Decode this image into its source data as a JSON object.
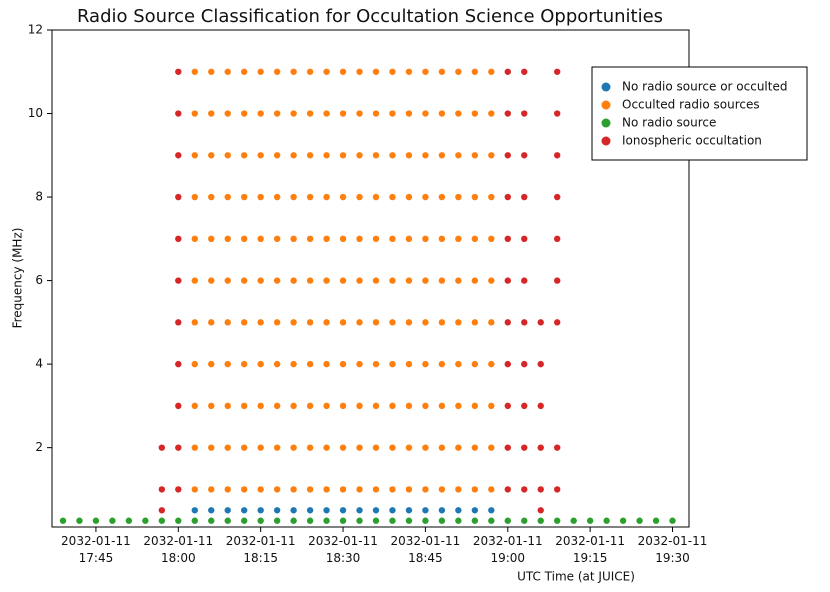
{
  "chart_data": {
    "type": "scatter",
    "title": "Radio Source Classification for Occultation Science Opportunities",
    "x_label": "UTC Time (at JUICE)",
    "y_label": "Frequency (MHz)",
    "xlim": [
      "2032-01-11 17:37",
      "2032-01-11 19:33"
    ],
    "xticks": [
      "2032-01-11 17:45",
      "2032-01-11 18:00",
      "2032-01-11 18:15",
      "2032-01-11 18:30",
      "2032-01-11 18:45",
      "2032-01-11 19:00",
      "2032-01-11 19:15",
      "2032-01-11 19:30"
    ],
    "ylim": [
      0.1,
      12
    ],
    "yticks": [
      2,
      4,
      6,
      8,
      10,
      12
    ],
    "legend": "upper right",
    "series": [
      {
        "name": "No radio source or occulted",
        "color": "#1f77b4",
        "x": [
          "2032-01-11 18:03",
          "2032-01-11 18:06",
          "2032-01-11 18:09",
          "2032-01-11 18:12",
          "2032-01-11 18:15",
          "2032-01-11 18:18",
          "2032-01-11 18:21",
          "2032-01-11 18:24",
          "2032-01-11 18:27",
          "2032-01-11 18:30",
          "2032-01-11 18:33",
          "2032-01-11 18:36",
          "2032-01-11 18:39",
          "2032-01-11 18:42",
          "2032-01-11 18:45",
          "2032-01-11 18:48",
          "2032-01-11 18:51",
          "2032-01-11 18:54",
          "2032-01-11 18:57"
        ],
        "values": [
          0.5,
          0.5,
          0.5,
          0.5,
          0.5,
          0.5,
          0.5,
          0.5,
          0.5,
          0.5,
          0.5,
          0.5,
          0.5,
          0.5,
          0.5,
          0.5,
          0.5,
          0.5,
          0.5
        ]
      },
      {
        "name": "Occulted radio sources",
        "color": "#ff7f0e",
        "x": [
          "2032-01-11 18:03",
          "2032-01-11 18:06",
          "2032-01-11 18:09",
          "2032-01-11 18:12",
          "2032-01-11 18:15",
          "2032-01-11 18:18",
          "2032-01-11 18:21",
          "2032-01-11 18:24",
          "2032-01-11 18:27",
          "2032-01-11 18:30",
          "2032-01-11 18:33",
          "2032-01-11 18:36",
          "2032-01-11 18:39",
          "2032-01-11 18:42",
          "2032-01-11 18:45",
          "2032-01-11 18:48",
          "2032-01-11 18:51",
          "2032-01-11 18:54",
          "2032-01-11 18:57",
          "2032-01-11 18:03",
          "2032-01-11 18:06",
          "2032-01-11 18:09",
          "2032-01-11 18:12",
          "2032-01-11 18:15",
          "2032-01-11 18:18",
          "2032-01-11 18:21",
          "2032-01-11 18:24",
          "2032-01-11 18:27",
          "2032-01-11 18:30",
          "2032-01-11 18:33",
          "2032-01-11 18:36",
          "2032-01-11 18:39",
          "2032-01-11 18:42",
          "2032-01-11 18:45",
          "2032-01-11 18:48",
          "2032-01-11 18:51",
          "2032-01-11 18:54",
          "2032-01-11 18:57",
          "2032-01-11 18:03",
          "2032-01-11 18:06",
          "2032-01-11 18:09",
          "2032-01-11 18:12",
          "2032-01-11 18:15",
          "2032-01-11 18:18",
          "2032-01-11 18:21",
          "2032-01-11 18:24",
          "2032-01-11 18:27",
          "2032-01-11 18:30",
          "2032-01-11 18:33",
          "2032-01-11 18:36",
          "2032-01-11 18:39",
          "2032-01-11 18:42",
          "2032-01-11 18:45",
          "2032-01-11 18:48",
          "2032-01-11 18:51",
          "2032-01-11 18:54",
          "2032-01-11 18:57",
          "2032-01-11 18:03",
          "2032-01-11 18:06",
          "2032-01-11 18:09",
          "2032-01-11 18:12",
          "2032-01-11 18:15",
          "2032-01-11 18:18",
          "2032-01-11 18:21",
          "2032-01-11 18:24",
          "2032-01-11 18:27",
          "2032-01-11 18:30",
          "2032-01-11 18:33",
          "2032-01-11 18:36",
          "2032-01-11 18:39",
          "2032-01-11 18:42",
          "2032-01-11 18:45",
          "2032-01-11 18:48",
          "2032-01-11 18:51",
          "2032-01-11 18:54",
          "2032-01-11 18:57",
          "2032-01-11 18:03",
          "2032-01-11 18:06",
          "2032-01-11 18:09",
          "2032-01-11 18:12",
          "2032-01-11 18:15",
          "2032-01-11 18:18",
          "2032-01-11 18:21",
          "2032-01-11 18:24",
          "2032-01-11 18:27",
          "2032-01-11 18:30",
          "2032-01-11 18:33",
          "2032-01-11 18:36",
          "2032-01-11 18:39",
          "2032-01-11 18:42",
          "2032-01-11 18:45",
          "2032-01-11 18:48",
          "2032-01-11 18:51",
          "2032-01-11 18:54",
          "2032-01-11 18:57",
          "2032-01-11 18:03",
          "2032-01-11 18:06",
          "2032-01-11 18:09",
          "2032-01-11 18:12",
          "2032-01-11 18:15",
          "2032-01-11 18:18",
          "2032-01-11 18:21",
          "2032-01-11 18:24",
          "2032-01-11 18:27",
          "2032-01-11 18:30",
          "2032-01-11 18:33",
          "2032-01-11 18:36",
          "2032-01-11 18:39",
          "2032-01-11 18:42",
          "2032-01-11 18:45",
          "2032-01-11 18:48",
          "2032-01-11 18:51",
          "2032-01-11 18:54",
          "2032-01-11 18:57",
          "2032-01-11 18:03",
          "2032-01-11 18:06",
          "2032-01-11 18:09",
          "2032-01-11 18:12",
          "2032-01-11 18:15",
          "2032-01-11 18:18",
          "2032-01-11 18:21",
          "2032-01-11 18:24",
          "2032-01-11 18:27",
          "2032-01-11 18:30",
          "2032-01-11 18:33",
          "2032-01-11 18:36",
          "2032-01-11 18:39",
          "2032-01-11 18:42",
          "2032-01-11 18:45",
          "2032-01-11 18:48",
          "2032-01-11 18:51",
          "2032-01-11 18:54",
          "2032-01-11 18:57",
          "2032-01-11 18:03",
          "2032-01-11 18:06",
          "2032-01-11 18:09",
          "2032-01-11 18:12",
          "2032-01-11 18:15",
          "2032-01-11 18:18",
          "2032-01-11 18:21",
          "2032-01-11 18:24",
          "2032-01-11 18:27",
          "2032-01-11 18:30",
          "2032-01-11 18:33",
          "2032-01-11 18:36",
          "2032-01-11 18:39",
          "2032-01-11 18:42",
          "2032-01-11 18:45",
          "2032-01-11 18:48",
          "2032-01-11 18:51",
          "2032-01-11 18:54",
          "2032-01-11 18:57",
          "2032-01-11 18:03",
          "2032-01-11 18:06",
          "2032-01-11 18:09",
          "2032-01-11 18:12",
          "2032-01-11 18:15",
          "2032-01-11 18:18",
          "2032-01-11 18:21",
          "2032-01-11 18:24",
          "2032-01-11 18:27",
          "2032-01-11 18:30",
          "2032-01-11 18:33",
          "2032-01-11 18:36",
          "2032-01-11 18:39",
          "2032-01-11 18:42",
          "2032-01-11 18:45",
          "2032-01-11 18:48",
          "2032-01-11 18:51",
          "2032-01-11 18:54",
          "2032-01-11 18:57",
          "2032-01-11 18:03",
          "2032-01-11 18:06",
          "2032-01-11 18:09",
          "2032-01-11 18:12",
          "2032-01-11 18:15",
          "2032-01-11 18:18",
          "2032-01-11 18:21",
          "2032-01-11 18:24",
          "2032-01-11 18:27",
          "2032-01-11 18:30",
          "2032-01-11 18:33",
          "2032-01-11 18:36",
          "2032-01-11 18:39",
          "2032-01-11 18:42",
          "2032-01-11 18:45",
          "2032-01-11 18:48",
          "2032-01-11 18:51",
          "2032-01-11 18:54",
          "2032-01-11 18:57",
          "2032-01-11 18:03",
          "2032-01-11 18:06",
          "2032-01-11 18:09",
          "2032-01-11 18:12",
          "2032-01-11 18:15",
          "2032-01-11 18:18",
          "2032-01-11 18:21",
          "2032-01-11 18:24",
          "2032-01-11 18:27",
          "2032-01-11 18:30",
          "2032-01-11 18:33",
          "2032-01-11 18:36",
          "2032-01-11 18:39",
          "2032-01-11 18:42",
          "2032-01-11 18:45",
          "2032-01-11 18:48",
          "2032-01-11 18:51",
          "2032-01-11 18:54",
          "2032-01-11 18:57"
        ],
        "values": [
          1,
          1,
          1,
          1,
          1,
          1,
          1,
          1,
          1,
          1,
          1,
          1,
          1,
          1,
          1,
          1,
          1,
          1,
          1,
          2,
          2,
          2,
          2,
          2,
          2,
          2,
          2,
          2,
          2,
          2,
          2,
          2,
          2,
          2,
          2,
          2,
          2,
          2,
          3,
          3,
          3,
          3,
          3,
          3,
          3,
          3,
          3,
          3,
          3,
          3,
          3,
          3,
          3,
          3,
          3,
          3,
          3,
          4,
          4,
          4,
          4,
          4,
          4,
          4,
          4,
          4,
          4,
          4,
          4,
          4,
          4,
          4,
          4,
          4,
          4,
          4,
          5,
          5,
          5,
          5,
          5,
          5,
          5,
          5,
          5,
          5,
          5,
          5,
          5,
          5,
          5,
          5,
          5,
          5,
          5,
          6,
          6,
          6,
          6,
          6,
          6,
          6,
          6,
          6,
          6,
          6,
          6,
          6,
          6,
          6,
          6,
          6,
          6,
          6,
          7,
          7,
          7,
          7,
          7,
          7,
          7,
          7,
          7,
          7,
          7,
          7,
          7,
          7,
          7,
          7,
          7,
          7,
          7,
          8,
          8,
          8,
          8,
          8,
          8,
          8,
          8,
          8,
          8,
          8,
          8,
          8,
          8,
          8,
          8,
          8,
          8,
          8,
          9,
          9,
          9,
          9,
          9,
          9,
          9,
          9,
          9,
          9,
          9,
          9,
          9,
          9,
          9,
          9,
          9,
          9,
          9,
          10,
          10,
          10,
          10,
          10,
          10,
          10,
          10,
          10,
          10,
          10,
          10,
          10,
          10,
          10,
          10,
          10,
          10,
          10,
          11,
          11,
          11,
          11,
          11,
          11,
          11,
          11,
          11,
          11,
          11,
          11,
          11,
          11,
          11,
          11,
          11,
          11,
          11
        ]
      },
      {
        "name": "No radio source",
        "color": "#2ca02c",
        "x": [
          "2032-01-11 17:39",
          "2032-01-11 17:42",
          "2032-01-11 17:45",
          "2032-01-11 17:48",
          "2032-01-11 17:51",
          "2032-01-11 17:54",
          "2032-01-11 17:57",
          "2032-01-11 18:00",
          "2032-01-11 18:03",
          "2032-01-11 18:06",
          "2032-01-11 18:09",
          "2032-01-11 18:12",
          "2032-01-11 18:15",
          "2032-01-11 18:18",
          "2032-01-11 18:21",
          "2032-01-11 18:24",
          "2032-01-11 18:27",
          "2032-01-11 18:30",
          "2032-01-11 18:33",
          "2032-01-11 18:36",
          "2032-01-11 18:39",
          "2032-01-11 18:42",
          "2032-01-11 18:45",
          "2032-01-11 18:48",
          "2032-01-11 18:51",
          "2032-01-11 18:54",
          "2032-01-11 18:57",
          "2032-01-11 19:00",
          "2032-01-11 19:03",
          "2032-01-11 19:06",
          "2032-01-11 19:09",
          "2032-01-11 19:12",
          "2032-01-11 19:15",
          "2032-01-11 19:18",
          "2032-01-11 19:21",
          "2032-01-11 19:24",
          "2032-01-11 19:27",
          "2032-01-11 19:30"
        ],
        "values": [
          0.25,
          0.25,
          0.25,
          0.25,
          0.25,
          0.25,
          0.25,
          0.25,
          0.25,
          0.25,
          0.25,
          0.25,
          0.25,
          0.25,
          0.25,
          0.25,
          0.25,
          0.25,
          0.25,
          0.25,
          0.25,
          0.25,
          0.25,
          0.25,
          0.25,
          0.25,
          0.25,
          0.25,
          0.25,
          0.25,
          0.25,
          0.25,
          0.25,
          0.25,
          0.25,
          0.25,
          0.25,
          0.25
        ]
      },
      {
        "name": "Ionospheric occultation",
        "color": "#d62728",
        "x": [
          "2032-01-11 17:57",
          "2032-01-11 17:57",
          "2032-01-11 17:57",
          "2032-01-11 18:00",
          "2032-01-11 18:00",
          "2032-01-11 18:00",
          "2032-01-11 18:00",
          "2032-01-11 18:00",
          "2032-01-11 18:00",
          "2032-01-11 18:00",
          "2032-01-11 18:00",
          "2032-01-11 18:00",
          "2032-01-11 18:00",
          "2032-01-11 18:00",
          "2032-01-11 19:00",
          "2032-01-11 19:00",
          "2032-01-11 19:00",
          "2032-01-11 19:00",
          "2032-01-11 19:00",
          "2032-01-11 19:00",
          "2032-01-11 19:00",
          "2032-01-11 19:00",
          "2032-01-11 19:00",
          "2032-01-11 19:00",
          "2032-01-11 19:00",
          "2032-01-11 19:03",
          "2032-01-11 19:03",
          "2032-01-11 19:03",
          "2032-01-11 19:03",
          "2032-01-11 19:03",
          "2032-01-11 19:03",
          "2032-01-11 19:03",
          "2032-01-11 19:03",
          "2032-01-11 19:03",
          "2032-01-11 19:03",
          "2032-01-11 19:03",
          "2032-01-11 19:06",
          "2032-01-11 19:06",
          "2032-01-11 19:06",
          "2032-01-11 19:06",
          "2032-01-11 19:06",
          "2032-01-11 19:06",
          "2032-01-11 19:09",
          "2032-01-11 19:09",
          "2032-01-11 19:09",
          "2032-01-11 19:09",
          "2032-01-11 19:09",
          "2032-01-11 19:09",
          "2032-01-11 19:09",
          "2032-01-11 19:09",
          "2032-01-11 19:09"
        ],
        "values": [
          0.5,
          1,
          2,
          1,
          2,
          3,
          4,
          5,
          6,
          7,
          8,
          9,
          10,
          11,
          1,
          2,
          3,
          4,
          5,
          6,
          7,
          8,
          9,
          10,
          11,
          1,
          2,
          3,
          4,
          5,
          6,
          7,
          8,
          9,
          10,
          11,
          0.5,
          1,
          2,
          3,
          4,
          5,
          1,
          2,
          5,
          6,
          7,
          8,
          9,
          10,
          11
        ]
      }
    ]
  }
}
